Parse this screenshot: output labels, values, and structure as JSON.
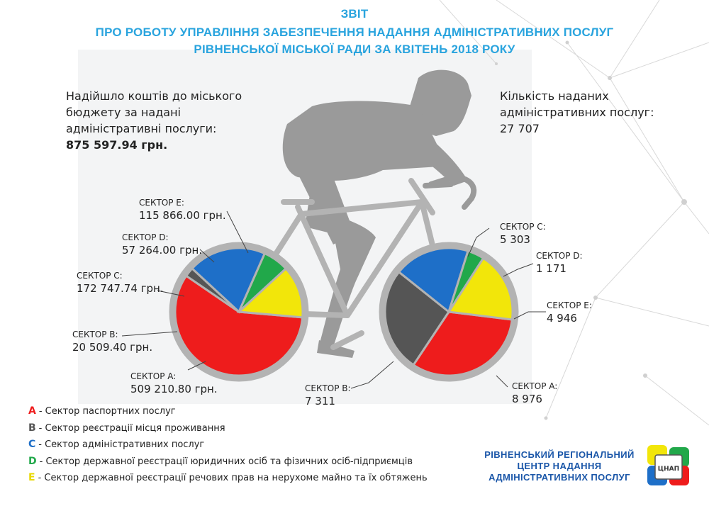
{
  "header": {
    "line1": "ЗВІТ",
    "line2": "ПРО РОБОТУ УПРАВЛІННЯ ЗАБЕЗПЕЧЕННЯ НАДАННЯ АДМІНІСТРАТИВНИХ ПОСЛУГ",
    "line3": "РІВНЕНСЬКОЇ МІСЬКОЇ РАДИ ЗА КВІТЕНЬ 2018 РОКУ"
  },
  "funds": {
    "line1": "Надійшло коштів до міського",
    "line2": "бюджету за надані",
    "line3": "адміністративні послуги:",
    "value": "875 597.94 грн."
  },
  "services": {
    "line1": "Кількість наданих",
    "line2": "адміністративних послуг:",
    "value": "27 707"
  },
  "legend": [
    {
      "letter": "A",
      "text": "- Сектор паспортних послуг",
      "color": "#ee1c1c"
    },
    {
      "letter": "B",
      "text": "- Сектор реєстрації місця проживання",
      "color": "#555555"
    },
    {
      "letter": "C",
      "text": "- Сектор адміністративних послуг",
      "color": "#1e6fc8"
    },
    {
      "letter": "D",
      "text": "- Сектор державної реєстрації юридичних осіб та фізичних осіб-підприємців",
      "color": "#21a84a"
    },
    {
      "letter": "E",
      "text": "- Сектор державної реєстрації речових прав на нерухоме майно та їх обтяжень",
      "color": "#f2e60a"
    }
  ],
  "org": {
    "line1": "РІВНЕНСЬКИЙ РЕГІОНАЛЬНИЙ",
    "line2": "ЦЕНТР НАДАННЯ",
    "line3": "АДМІНІСТРАТИВНИХ ПОСЛУГ"
  },
  "logo_text": "ЦНАП",
  "colors": {
    "title": "#2aa4de",
    "A": "#ee1c1c",
    "B": "#555555",
    "C": "#1e6fc8",
    "D": "#21a84a",
    "E": "#f2e60a",
    "silhouette": "#9a9a9a"
  },
  "chart_data": [
    {
      "type": "pie",
      "categories": [
        "СЕКТОР A:",
        "СЕКТОР B:",
        "СЕКТОР C:",
        "СЕКТОР D:",
        "СЕКТОР E:"
      ],
      "values": [
        509210.8,
        20509.4,
        172747.74,
        57264.0,
        115866.0
      ],
      "value_labels": [
        "509 210.80 грн.",
        "20 509.40 грн.",
        "172 747.74 грн.",
        "57 264.00 грн.",
        "115 866.00 грн."
      ],
      "colors": [
        "#ee1c1c",
        "#555555",
        "#1e6fc8",
        "#21a84a",
        "#f2e60a"
      ]
    },
    {
      "type": "pie",
      "categories": [
        "СЕКТОР A:",
        "СЕКТОР B:",
        "СЕКТОР C:",
        "СЕКТОР D:",
        "СЕКТОР E:"
      ],
      "values": [
        8976,
        7311,
        5303,
        1171,
        4946
      ],
      "value_labels": [
        "8 976",
        "7 311",
        "5 303",
        "1 171",
        "4 946"
      ],
      "colors": [
        "#ee1c1c",
        "#555555",
        "#1e6fc8",
        "#21a84a",
        "#f2e60a"
      ]
    }
  ]
}
